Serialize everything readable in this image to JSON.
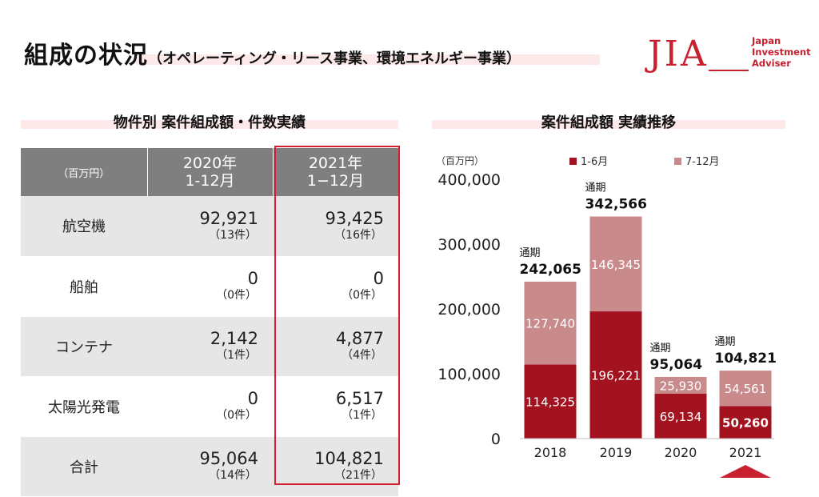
{
  "header": {
    "title_main": "組成の状況",
    "title_sub": "（オペレーティング・リース事業、環境エネルギー事業）"
  },
  "logo": {
    "mark": "JIA",
    "line1": "Japan",
    "line2": "Investment",
    "line3": "Adviser"
  },
  "table_section": {
    "title": "物件別 案件組成額・件数実績",
    "unit": "（百万円）",
    "col1": {
      "line1": "2020年",
      "line2": "1-12月"
    },
    "col2": {
      "line1": "2021年",
      "line2": "1−12月"
    },
    "rows": [
      {
        "label": "航空機",
        "v2020": "92,921",
        "c2020": "（13件）",
        "v2021": "93,425",
        "c2021": "（16件）"
      },
      {
        "label": "船舶",
        "v2020": "0",
        "c2020": "（0件）",
        "v2021": "0",
        "c2021": "（0件）"
      },
      {
        "label": "コンテナ",
        "v2020": "2,142",
        "c2020": "（1件）",
        "v2021": "4,877",
        "c2021": "（4件）"
      },
      {
        "label": "太陽光発電",
        "v2020": "0",
        "c2020": "（0件）",
        "v2021": "6,517",
        "c2021": "（1件）"
      },
      {
        "label": "合計",
        "v2020": "95,064",
        "c2020": "（14件）",
        "v2021": "104,821",
        "c2021": "（21件）"
      }
    ]
  },
  "chart_section": {
    "title": "案件組成額 実績推移"
  },
  "chart_data": {
    "type": "bar",
    "stacked": true,
    "unit_label": "（百万円）",
    "categories": [
      "2018",
      "2019",
      "2020",
      "2021"
    ],
    "series": [
      {
        "name": "1-6月",
        "values": [
          114325,
          196221,
          69134,
          50260
        ],
        "color": "#a3121f"
      },
      {
        "name": "7-12月",
        "values": [
          127740,
          146345,
          25930,
          54561
        ],
        "color": "#c98a8c"
      }
    ],
    "totals": [
      242065,
      342566,
      95064,
      104821
    ],
    "total_label": "通期",
    "yticks": [
      0,
      100000,
      200000,
      300000,
      400000
    ],
    "ylim": [
      0,
      400000
    ],
    "legend_position": "top",
    "highlight_category": "2021",
    "highlight_color": "#c8202e"
  }
}
